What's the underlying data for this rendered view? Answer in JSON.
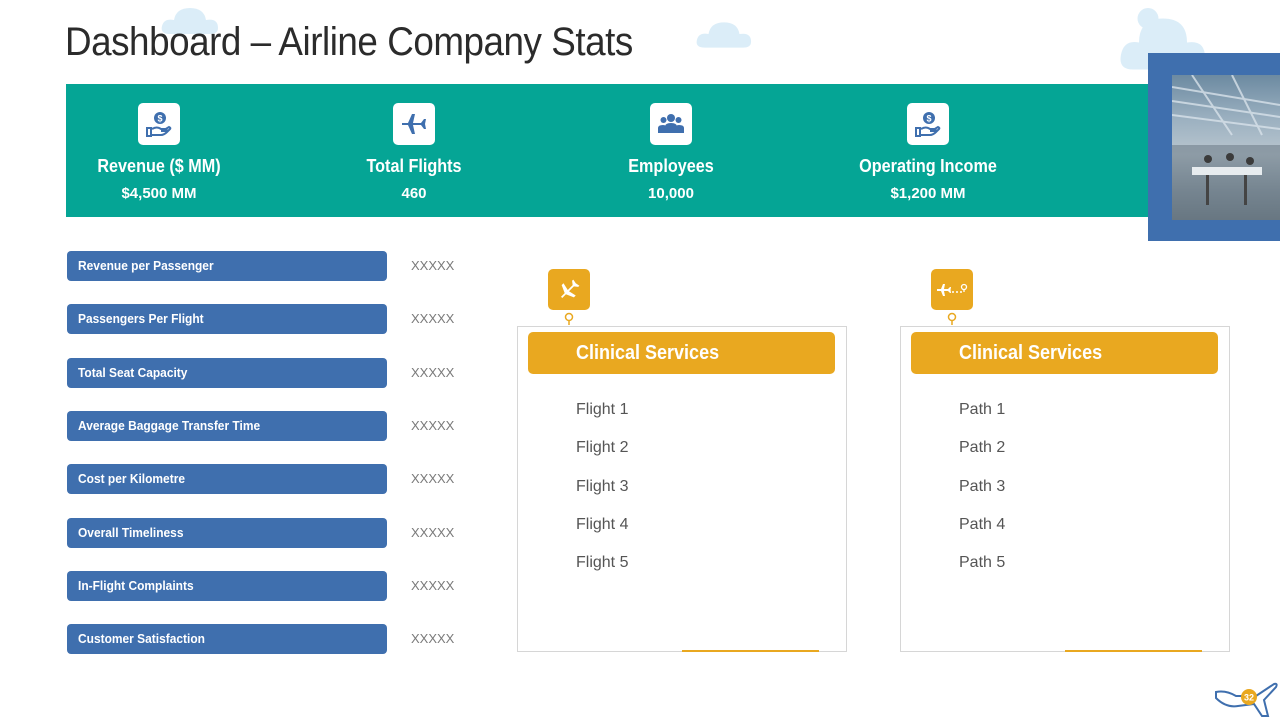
{
  "title": "Dashboard – Airline Company Stats",
  "colors": {
    "teal": "#05a595",
    "blue": "#3f6fae",
    "gold": "#e9a820"
  },
  "stats": [
    {
      "icon": "money-hand-icon",
      "label": "Revenue ($ MM)",
      "value": "$4,500 MM"
    },
    {
      "icon": "airplane-icon",
      "label": "Total Flights",
      "value": "460"
    },
    {
      "icon": "employees-icon",
      "label": "Employees",
      "value": "10,000"
    },
    {
      "icon": "money-hand-icon",
      "label": "Operating Income",
      "value": "$1,200 MM"
    }
  ],
  "metrics": [
    {
      "label": "Revenue per Passenger",
      "value": "XXXXX"
    },
    {
      "label": "Passengers Per Flight",
      "value": "XXXXX"
    },
    {
      "label": "Total Seat Capacity",
      "value": "XXXXX"
    },
    {
      "label": "Average Baggage Transfer Time",
      "value": "XXXXX"
    },
    {
      "label": "Cost per Kilometre",
      "value": "XXXXX"
    },
    {
      "label": "Overall Timeliness",
      "value": "XXXXX"
    },
    {
      "label": "In-Flight Complaints",
      "value": "XXXXX"
    },
    {
      "label": "Customer Satisfaction",
      "value": "XXXXX"
    }
  ],
  "cards": [
    {
      "icon": "airplane-icon",
      "title": "Clinical Services",
      "items": [
        "Flight 1",
        "Flight 2",
        "Flight 3",
        "Flight 4",
        "Flight 5"
      ]
    },
    {
      "icon": "flight-path-icon",
      "title": "Clinical Services",
      "items": [
        "Path 1",
        "Path 2",
        "Path 3",
        "Path 4",
        "Path 5"
      ]
    }
  ],
  "page_number": "32"
}
